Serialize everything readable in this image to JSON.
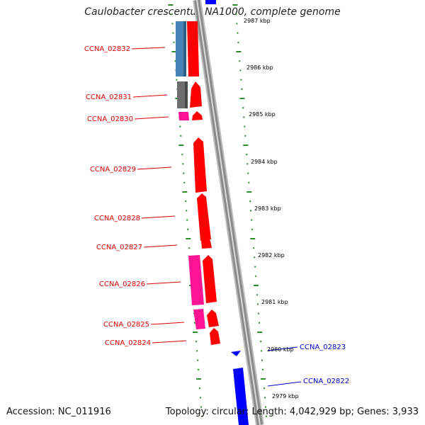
{
  "title": "Caulobacter crescentus NA1000, complete genome",
  "footer": {
    "accession": "Accession: NC_011916",
    "stats": "Topology: circular; Length: 4,042,929 bp; Genes: 3,933"
  },
  "colors": {
    "forward_cds": "#ff0000",
    "reverse_cds_pink": "#ff1493",
    "reverse_cds_blue": "#4682b4",
    "reverse_cds_gray": "#6e6e6e",
    "other_strand_cds": "#0000ff",
    "left_label": "#dd0000",
    "right_label": "#0000cc",
    "tick_dots": "#2e8b2e",
    "backbone": "#9a9a9a"
  },
  "scale_labels": [
    "2987 kbp",
    "2986 kbp",
    "2985 kbp",
    "2984 kbp",
    "2983 kbp",
    "2982 kbp",
    "2981 kbp",
    "2980 kbp",
    "2979 kbp"
  ],
  "left_gene_labels": [
    "CCNA_02832",
    "CCNA_02831",
    "CCNA_02830",
    "CCNA_02829",
    "CCNA_02828",
    "CCNA_02827",
    "CCNA_02826",
    "CCNA_02825",
    "CCNA_02824"
  ],
  "right_gene_labels": [
    "CCNA_02823",
    "CCNA_02822"
  ]
}
